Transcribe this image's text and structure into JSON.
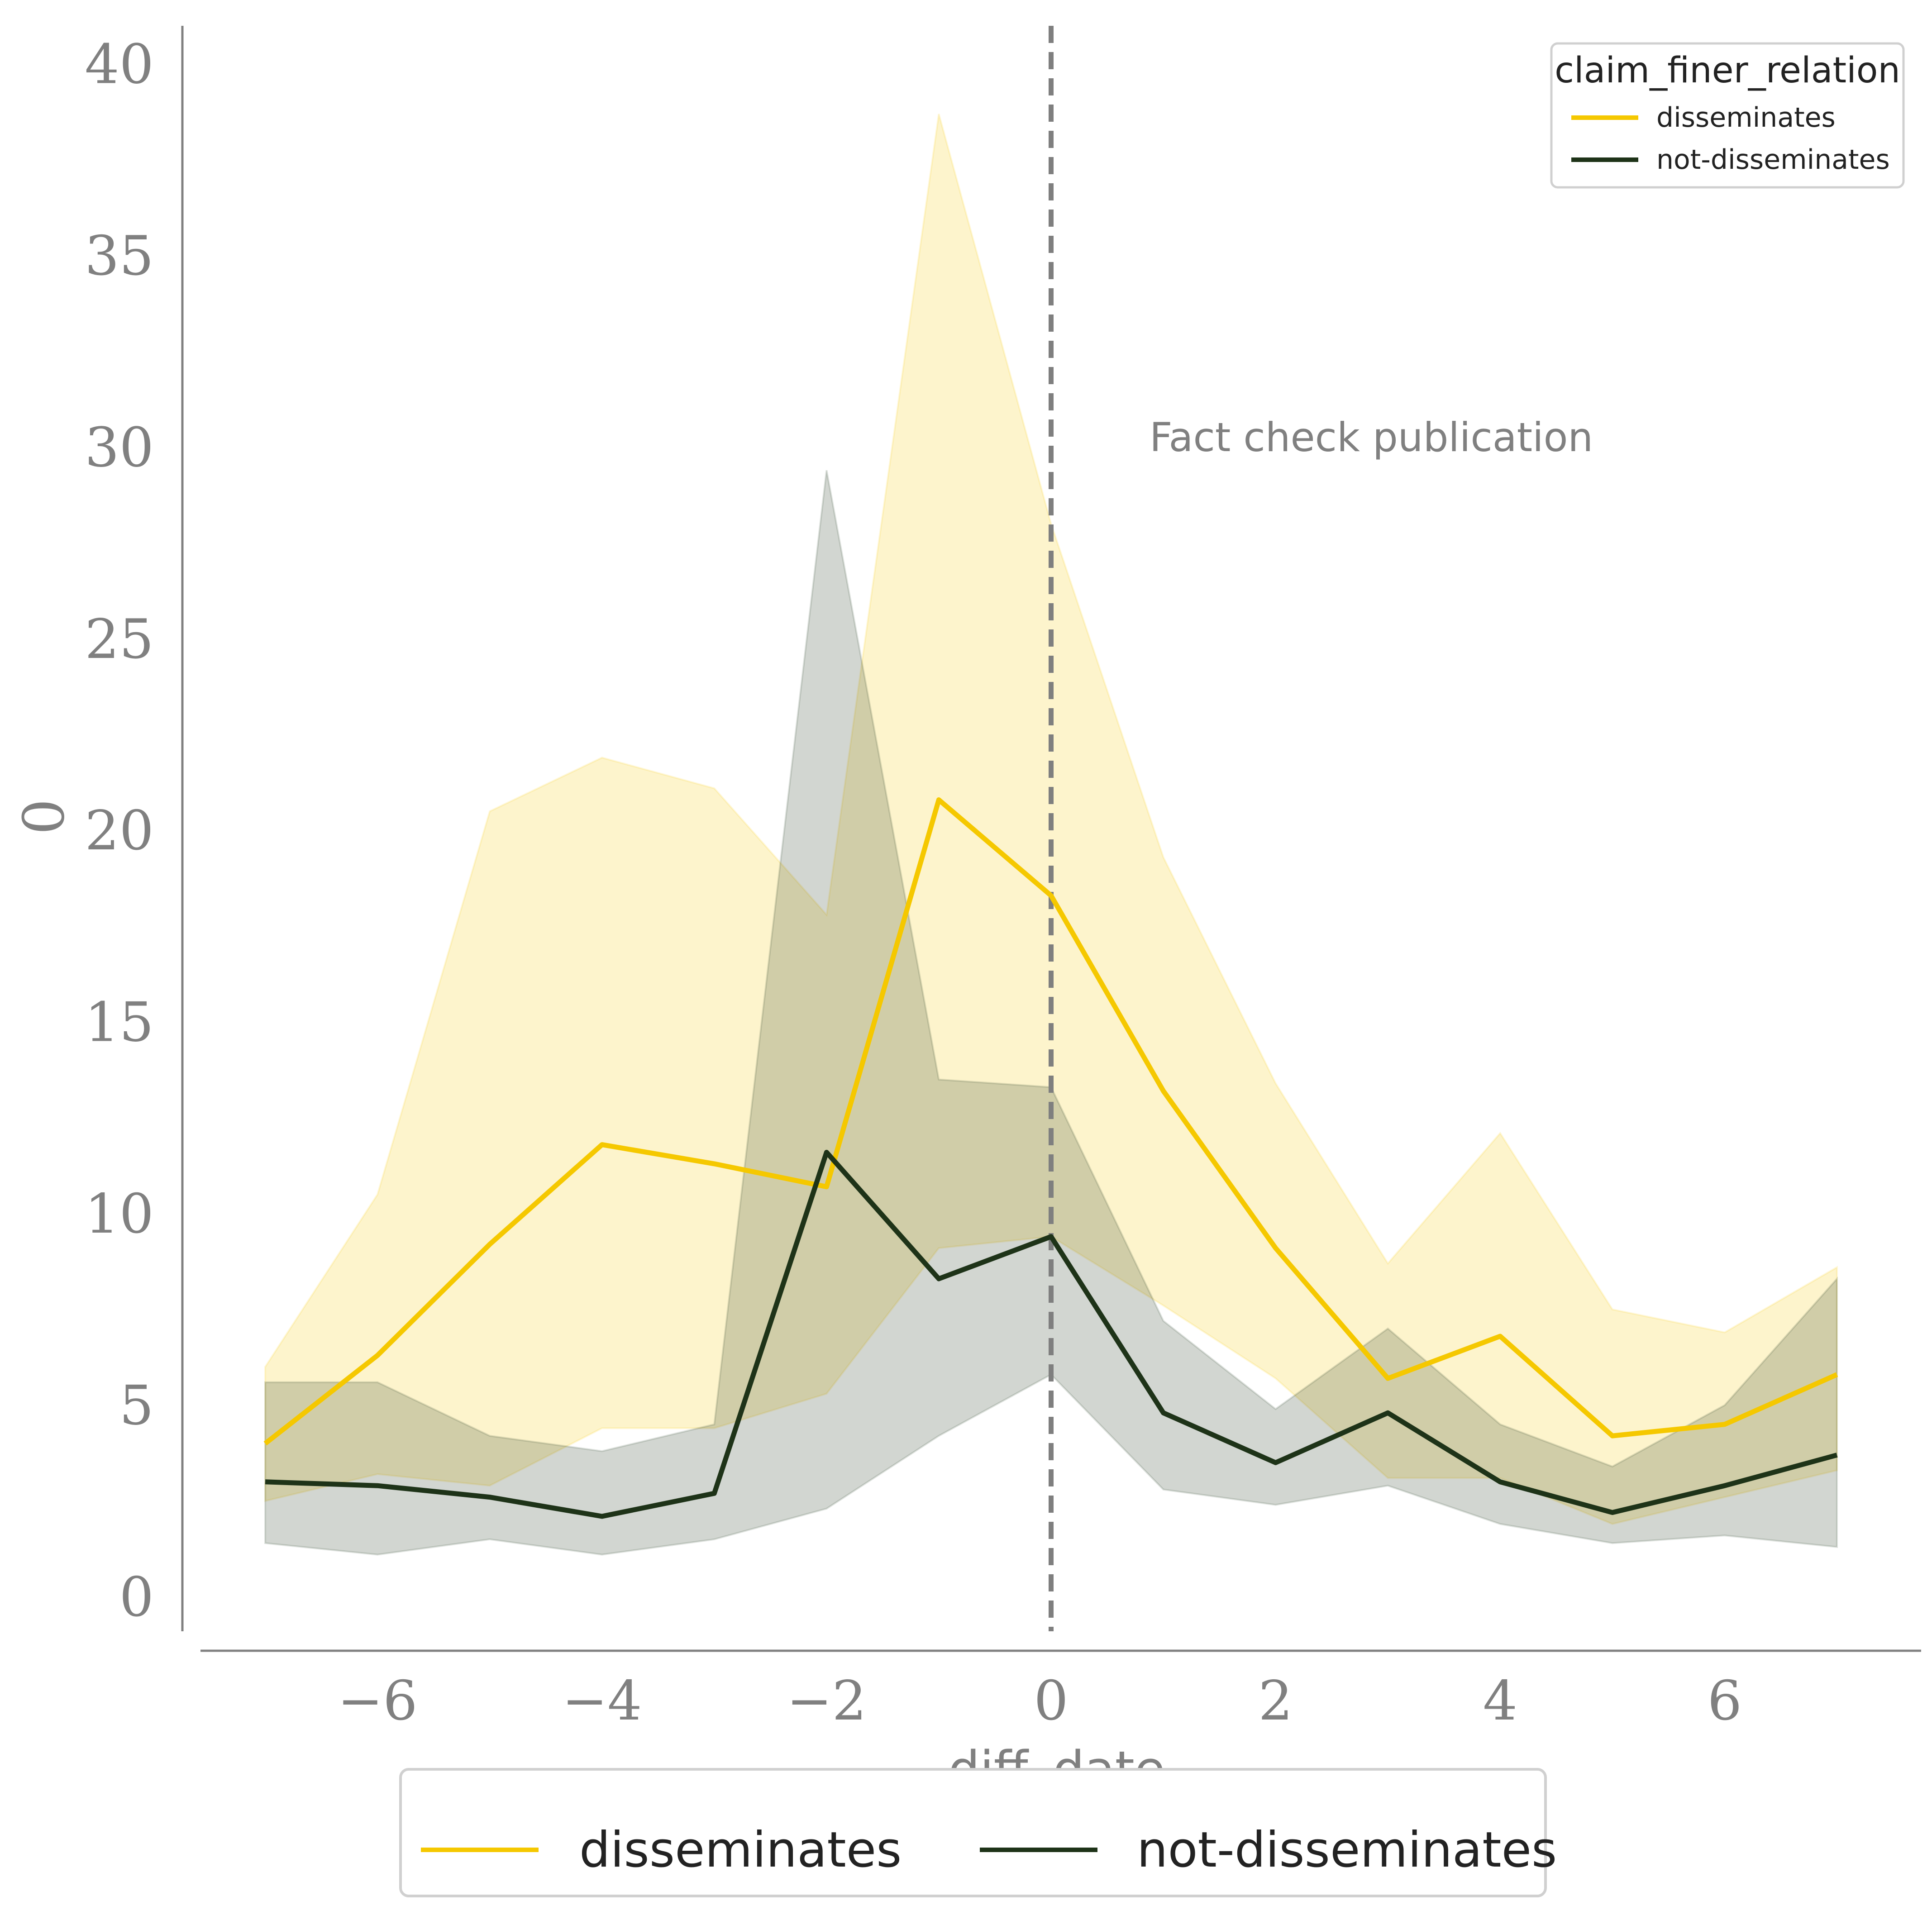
{
  "chart_data": {
    "type": "line",
    "xlabel": "diff_date",
    "ylabel": "0",
    "xlim": [
      -7.75,
      7.75
    ],
    "ylim": [
      -0.9,
      41
    ],
    "xticks": [
      -6,
      -4,
      -2,
      0,
      2,
      4,
      6
    ],
    "xtick_labels": [
      "−6",
      "−4",
      "−2",
      "0",
      "2",
      "4",
      "6"
    ],
    "yticks": [
      0,
      5,
      10,
      15,
      20,
      25,
      30,
      35,
      40
    ],
    "ytick_labels": [
      "0",
      "5",
      "10",
      "15",
      "20",
      "25",
      "30",
      "35",
      "40"
    ],
    "grid": false,
    "x": [
      -7,
      -6,
      -5,
      -4,
      -3,
      -2,
      -1,
      0,
      1,
      2,
      3,
      4,
      5,
      6,
      7
    ],
    "series": [
      {
        "name": "disseminates",
        "color": "#f5c800",
        "values": [
          4.0,
          6.3,
          9.2,
          11.8,
          11.3,
          10.7,
          20.8,
          18.3,
          13.2,
          9.1,
          5.7,
          6.8,
          4.2,
          4.5,
          5.8
        ],
        "ci_low": [
          2.5,
          3.2,
          2.9,
          4.4,
          4.4,
          5.3,
          9.1,
          9.4,
          7.6,
          5.7,
          3.1,
          3.1,
          1.9,
          2.6,
          3.3
        ],
        "ci_high": [
          6.0,
          10.5,
          20.5,
          21.9,
          21.1,
          17.8,
          38.7,
          28.0,
          19.3,
          13.4,
          8.7,
          12.1,
          7.5,
          6.9,
          8.6
        ]
      },
      {
        "name": "not-disseminates",
        "color": "#1e3318",
        "values": [
          3.0,
          2.9,
          2.6,
          2.1,
          2.7,
          11.6,
          8.3,
          9.4,
          4.8,
          3.5,
          4.8,
          3.0,
          2.2,
          2.9,
          3.7
        ],
        "ci_low": [
          1.4,
          1.1,
          1.5,
          1.1,
          1.5,
          2.3,
          4.2,
          5.8,
          2.8,
          2.4,
          2.9,
          1.9,
          1.4,
          1.6,
          1.3
        ],
        "ci_high": [
          5.6,
          5.6,
          4.2,
          3.8,
          4.5,
          29.4,
          13.5,
          13.3,
          7.2,
          4.9,
          7.0,
          4.5,
          3.4,
          5.0,
          8.3
        ]
      }
    ],
    "vline_x": 0,
    "annotation": "Fact check publication",
    "legend_title": "claim_finer_relation",
    "legend_position": "top-right",
    "bottom_legend_position": "below plot"
  }
}
